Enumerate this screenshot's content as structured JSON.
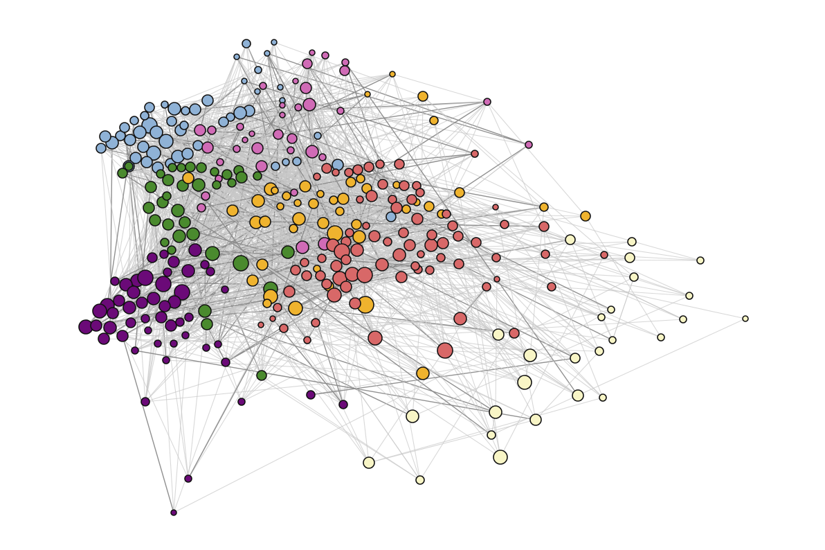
{
  "diagram": {
    "type": "network-graph",
    "title": "",
    "background": "#ffffff",
    "edge_color": "#c8c8c8",
    "node_stroke": "#111111",
    "clusters": [
      {
        "id": "blue",
        "color": "#8fb2d6",
        "approx_node_count": 70
      },
      {
        "id": "pink",
        "color": "#d06bb6",
        "approx_node_count": 40
      },
      {
        "id": "green",
        "color": "#4a8a2e",
        "approx_node_count": 35
      },
      {
        "id": "purple",
        "color": "#6b0a78",
        "approx_node_count": 75
      },
      {
        "id": "yellow",
        "color": "#efb32e",
        "approx_node_count": 55
      },
      {
        "id": "red",
        "color": "#d86868",
        "approx_node_count": 85
      },
      {
        "id": "cream",
        "color": "#f8f5c6",
        "approx_node_count": 35
      }
    ]
  }
}
